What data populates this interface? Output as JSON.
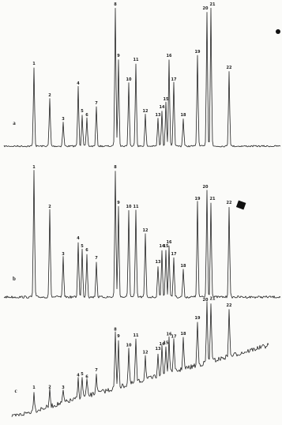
{
  "panels": [
    {
      "label": "a",
      "peaks": [
        "1",
        "2",
        "3",
        "4",
        "5",
        "6",
        "7",
        "8",
        "9",
        "10",
        "11",
        "12",
        "13",
        "14",
        "15",
        "16",
        "17",
        "18",
        "19",
        "20",
        "21",
        "22"
      ]
    },
    {
      "label": "b",
      "peaks": [
        "1",
        "2",
        "3",
        "4",
        "5",
        "6",
        "7",
        "8",
        "9",
        "10",
        "11",
        "12",
        "13",
        "14",
        "15",
        "16",
        "17",
        "18",
        "19",
        "20",
        "21",
        "22"
      ]
    },
    {
      "label": "c",
      "peaks": [
        "1",
        "2",
        "3",
        "4",
        "5",
        "6",
        "7",
        "8",
        "9",
        "10",
        "11",
        "12",
        "13",
        "14",
        "15",
        "16",
        "17",
        "18",
        "19",
        "20",
        "21",
        "22"
      ]
    }
  ]
}
